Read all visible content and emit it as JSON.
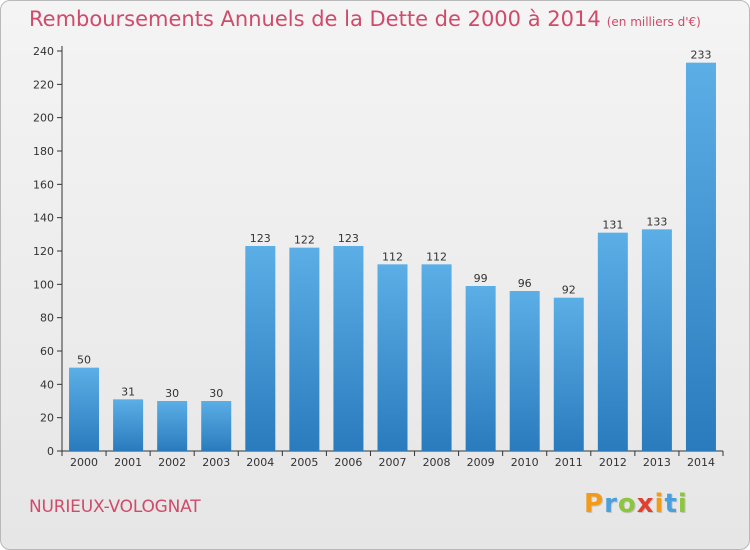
{
  "title": "Remboursements Annuels de la Dette de 2000 à 2014",
  "subtitle": "(en milliers d'€)",
  "commune": "NURIEUX-VOLOGNAT",
  "logo": {
    "text": "Proxiti",
    "letters": [
      {
        "ch": "P",
        "color": "#f29a1a"
      },
      {
        "ch": "r",
        "color": "#4a9fdc"
      },
      {
        "ch": "o",
        "color": "#8cc63f"
      },
      {
        "ch": "x",
        "color": "#e0402f"
      },
      {
        "ch": "i",
        "color": "#f29a1a"
      },
      {
        "ch": "t",
        "color": "#4a9fdc"
      },
      {
        "ch": "i",
        "color": "#8cc63f"
      }
    ]
  },
  "colors": {
    "title": "#d04a6a",
    "bar_top": "#5caee6",
    "bar_bottom": "#2a7bbd"
  },
  "chart_data": {
    "type": "bar",
    "categories": [
      "2000",
      "2001",
      "2002",
      "2003",
      "2004",
      "2005",
      "2006",
      "2007",
      "2008",
      "2009",
      "2010",
      "2011",
      "2012",
      "2013",
      "2014"
    ],
    "values": [
      50,
      31,
      30,
      30,
      123,
      122,
      123,
      112,
      112,
      99,
      96,
      92,
      131,
      133,
      233
    ],
    "ylim": [
      0,
      240
    ],
    "yticks": [
      0,
      20,
      40,
      60,
      80,
      100,
      120,
      140,
      160,
      180,
      200,
      220,
      240
    ],
    "grid": false,
    "data_labels": true
  }
}
